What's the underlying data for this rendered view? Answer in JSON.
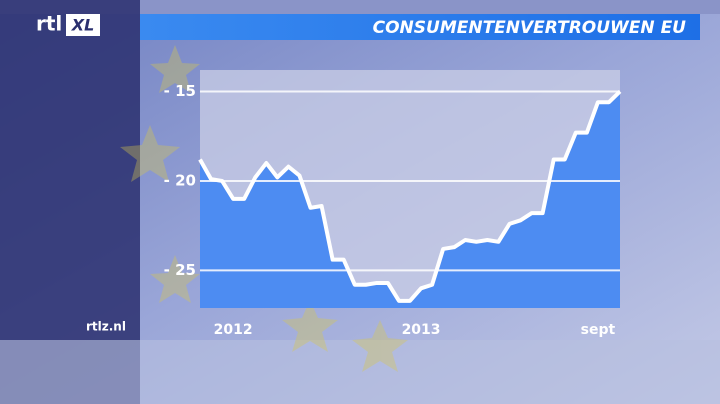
{
  "brand": {
    "logo": [
      "rtl",
      "XL"
    ],
    "site": "rtlz.nl"
  },
  "chart_data": {
    "type": "line",
    "title": "CONSUMENTENVERTROUWEN EU",
    "categories": [
      null,
      null,
      null,
      "2012",
      null,
      null,
      null,
      null,
      null,
      null,
      null,
      null,
      null,
      null,
      null,
      null,
      null,
      null,
      null,
      null,
      "2013",
      null,
      null,
      null,
      null,
      null,
      null,
      null,
      null,
      null,
      null,
      null,
      null,
      null,
      null,
      null,
      "sept",
      null,
      null
    ],
    "values": [
      -18.8,
      -19.9,
      -20.0,
      -21.0,
      -21.0,
      -19.8,
      -19.0,
      -19.8,
      -19.2,
      -19.7,
      -21.5,
      -21.4,
      -24.4,
      -24.4,
      -25.8,
      -25.8,
      -25.7,
      -25.7,
      -26.7,
      -26.7,
      -26.0,
      -25.8,
      -23.8,
      -23.7,
      -23.3,
      -23.4,
      -23.3,
      -23.4,
      -22.4,
      -22.2,
      -21.8,
      -21.8,
      -18.8,
      -18.8,
      -17.3,
      -17.3,
      -15.6,
      -15.6,
      -15.0
    ],
    "color": "#ffffff",
    "fill": "#4d8cf2",
    "ylim": [
      -27.1,
      -13.8
    ],
    "yticks": [
      {
        "value": -15,
        "label": "- 15"
      },
      {
        "value": -20,
        "label": "- 20"
      },
      {
        "value": -25,
        "label": "- 25"
      }
    ],
    "grid": true
  }
}
